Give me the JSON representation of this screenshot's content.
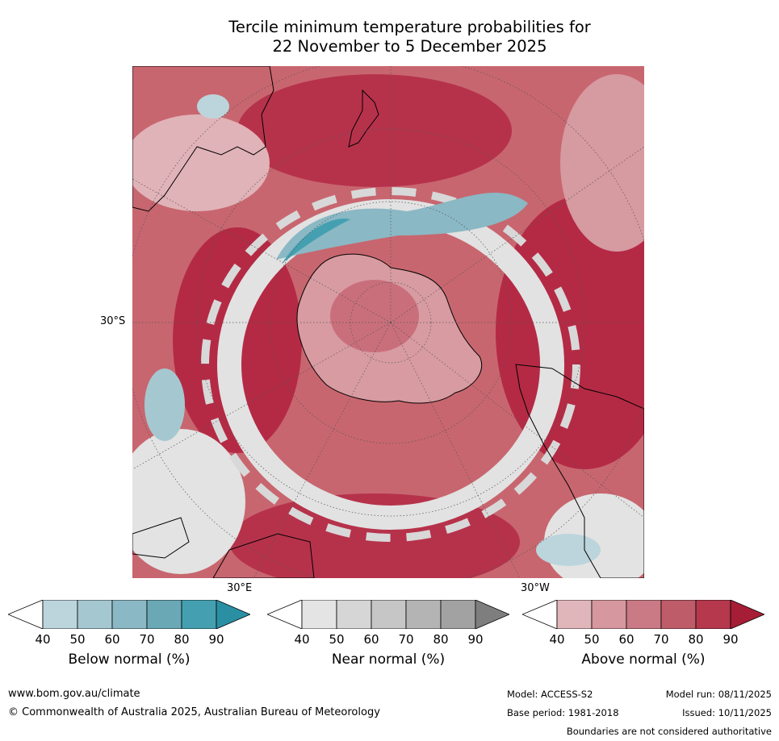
{
  "title": {
    "line1": "Tercile minimum temperature probabilities for",
    "line2": "22 November to 5 December 2025"
  },
  "map": {
    "lat_label": "30°S",
    "lon_label_left": "30°E",
    "lon_label_right": "30°W"
  },
  "legends": [
    {
      "label": "Below normal (%)",
      "ticks": [
        "40",
        "50",
        "60",
        "70",
        "80",
        "90"
      ],
      "colors": [
        "#ffffff",
        "#bcd5dc",
        "#a5c8d0",
        "#8ab8c4",
        "#6aa8b6",
        "#44a0b0",
        "#2a8fa3"
      ]
    },
    {
      "label": "Near normal (%)",
      "ticks": [
        "40",
        "50",
        "60",
        "70",
        "80",
        "90"
      ],
      "colors": [
        "#ffffff",
        "#e4e4e4",
        "#d6d6d6",
        "#c6c6c6",
        "#b4b4b4",
        "#a2a2a2",
        "#7e7e7e"
      ]
    },
    {
      "label": "Above normal (%)",
      "ticks": [
        "40",
        "50",
        "60",
        "70",
        "80",
        "90"
      ],
      "colors": [
        "#ffffff",
        "#e1b6bb",
        "#d6979f",
        "#c97a84",
        "#be5c69",
        "#b5384c",
        "#a61d36"
      ]
    }
  ],
  "footer": {
    "website": "www.bom.gov.au/climate",
    "copyright": "© Commonwealth of Australia 2025, Australian Bureau of Meteorology",
    "model": "Model: ACCESS-S2",
    "base_period": "Base period: 1981-2018",
    "model_run": "Model run: 08/11/2025",
    "issued": "Issued: 10/11/2025",
    "disclaimer": "Boundaries are not considered authoritative"
  }
}
